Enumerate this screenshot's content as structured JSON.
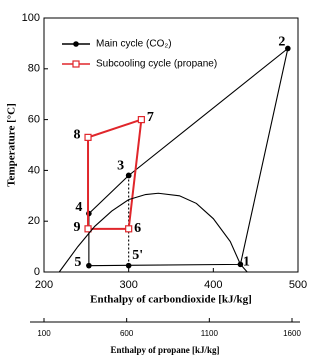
{
  "chart_data": {
    "type": "line",
    "ylabel": "Temperature [°C]",
    "xlabel": "Enthalpy of carbondioxide [kJ/kg]",
    "x2label": "Enthalpy of propane [kJ/kg]",
    "xlim": [
      200,
      500
    ],
    "xticks": [
      200,
      300,
      400,
      500
    ],
    "ylim": [
      0,
      100
    ],
    "yticks": [
      0,
      20,
      40,
      60,
      80,
      100
    ],
    "x2lim": [
      100,
      1600
    ],
    "x2ticks": [
      100,
      600,
      1100,
      1600
    ],
    "series": [
      {
        "name": "Main cycle (CO₂)",
        "color": "#000000",
        "marker": "circle",
        "closed": true,
        "x": [
          432,
          488,
          300,
          253,
          253
        ],
        "values": [
          3,
          88,
          38,
          23,
          2.5
        ],
        "point_labels": [
          "1",
          "2",
          "3",
          "4",
          "5"
        ]
      },
      {
        "color": "#000000",
        "marker": "circle",
        "dashed": true,
        "x": [
          300,
          300
        ],
        "values": [
          38,
          2.5
        ],
        "point_labels": [
          null,
          "5'"
        ]
      },
      {
        "name": "Subcooling cycle (propane)",
        "color": "#e0262b",
        "marker": "square",
        "closed": true,
        "x": [
          252,
          300,
          315,
          252
        ],
        "values": [
          17,
          17,
          60,
          53
        ],
        "point_labels": [
          "9",
          "6",
          "7",
          "8"
        ]
      },
      {
        "color": "#000000",
        "marker": "none",
        "x": [
          218,
          240,
          260,
          280,
          300,
          320,
          335,
          360,
          380,
          400,
          420,
          432,
          440
        ],
        "values": [
          0,
          10,
          18,
          24,
          28.5,
          30.5,
          31,
          30,
          27,
          21,
          12,
          3,
          0
        ]
      }
    ],
    "legend": "upper-left"
  }
}
